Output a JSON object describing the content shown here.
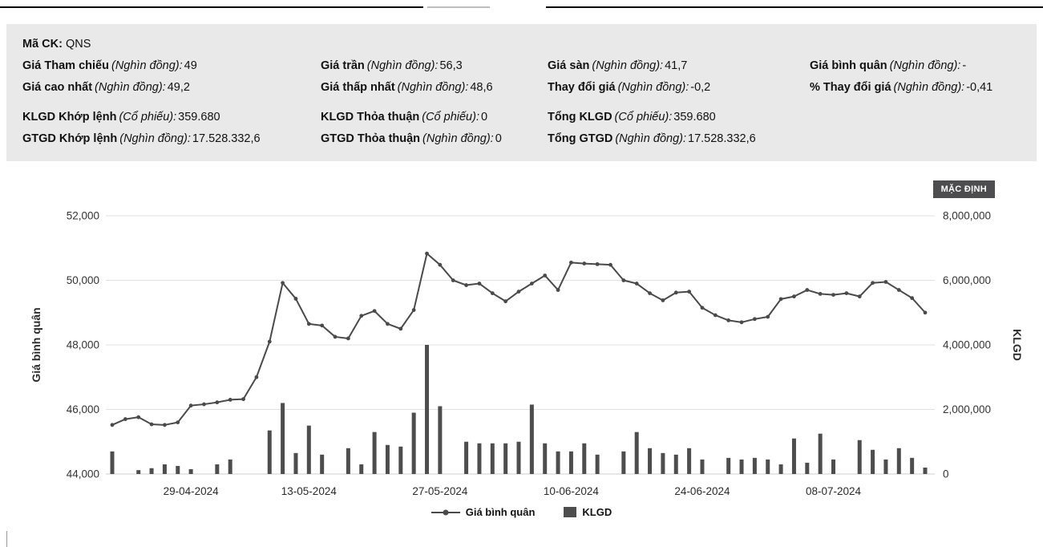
{
  "info_panel": {
    "ticker_label": "Mã CK:",
    "ticker_value": "QNS",
    "cells": [
      {
        "label": "Giá Tham chiếu",
        "unit": "(Nghìn đồng):",
        "value": "49"
      },
      {
        "label": "Giá trần",
        "unit": "(Nghìn đồng):",
        "value": "56,3"
      },
      {
        "label": "Giá sàn",
        "unit": "(Nghìn đồng):",
        "value": "41,7"
      },
      {
        "label": "Giá bình quân",
        "unit": "(Nghìn đồng):",
        "value": "-"
      },
      {
        "label": "Giá cao nhất",
        "unit": "(Nghìn đồng):",
        "value": "49,2"
      },
      {
        "label": "Giá thấp nhất",
        "unit": "(Nghìn đồng):",
        "value": "48,6"
      },
      {
        "label": "Thay đổi giá",
        "unit": "(Nghìn đồng):",
        "value": "-0,2"
      },
      {
        "label": "% Thay đổi giá",
        "unit": "(Nghìn đồng):",
        "value": "-0,41"
      },
      {
        "label": "KLGD Khớp lệnh",
        "unit": "(Cổ phiếu):",
        "value": "359.680"
      },
      {
        "label": "KLGD Thỏa thuận",
        "unit": "(Cổ phiếu):",
        "value": "0"
      },
      {
        "label": "Tổng KLGD",
        "unit": "(Cổ phiếu):",
        "value": "359.680"
      },
      {
        "label": "GTGD Khớp lệnh",
        "unit": "(Nghìn đồng):",
        "value": "17.528.332,6"
      },
      {
        "label": "GTGD Thỏa thuận",
        "unit": "(Nghìn đồng):",
        "value": "0"
      },
      {
        "label": "Tổng GTGD",
        "unit": "(Nghìn đồng):",
        "value": "17.528.332,6"
      }
    ]
  },
  "chart": {
    "default_button_label": "MẶC ĐỊNH"
  },
  "chart_data": {
    "type": "combo",
    "title": "",
    "x": [
      "19-04-2024",
      "22-04-2024",
      "23-04-2024",
      "24-04-2024",
      "25-04-2024",
      "26-04-2024",
      "29-04-2024",
      "30-04-2024",
      "02-05-2024",
      "03-05-2024",
      "06-05-2024",
      "07-05-2024",
      "08-05-2024",
      "09-05-2024",
      "10-05-2024",
      "13-05-2024",
      "14-05-2024",
      "15-05-2024",
      "16-05-2024",
      "17-05-2024",
      "20-05-2024",
      "21-05-2024",
      "22-05-2024",
      "23-05-2024",
      "24-05-2024",
      "27-05-2024",
      "28-05-2024",
      "29-05-2024",
      "30-05-2024",
      "31-05-2024",
      "03-06-2024",
      "04-06-2024",
      "05-06-2024",
      "06-06-2024",
      "07-06-2024",
      "10-06-2024",
      "11-06-2024",
      "12-06-2024",
      "13-06-2024",
      "14-06-2024",
      "17-06-2024",
      "18-06-2024",
      "19-06-2024",
      "20-06-2024",
      "21-06-2024",
      "24-06-2024",
      "25-06-2024",
      "26-06-2024",
      "27-06-2024",
      "28-06-2024",
      "01-07-2024",
      "02-07-2024",
      "03-07-2024",
      "04-07-2024",
      "05-07-2024",
      "08-07-2024",
      "09-07-2024",
      "10-07-2024",
      "11-07-2024",
      "12-07-2024",
      "15-07-2024",
      "16-07-2024",
      "17-07-2024"
    ],
    "x_tick_indices": [
      6,
      15,
      25,
      35,
      45,
      55
    ],
    "series": [
      {
        "name": "Giá bình quân",
        "type": "line",
        "axis": "left",
        "color": "#4a4a4a",
        "values": [
          45520,
          45700,
          45760,
          45540,
          45520,
          45600,
          46120,
          46160,
          46220,
          46300,
          46320,
          47000,
          48100,
          49920,
          49430,
          48650,
          48600,
          48250,
          48200,
          48900,
          49050,
          48650,
          48500,
          49080,
          50830,
          50480,
          50000,
          49850,
          49900,
          49600,
          49350,
          49650,
          49900,
          50150,
          49700,
          50550,
          50520,
          50500,
          50480,
          50000,
          49900,
          49600,
          49380,
          49620,
          49650,
          49150,
          48920,
          48760,
          48700,
          48800,
          48870,
          49420,
          49500,
          49700,
          49580,
          49550,
          49600,
          49500,
          49920,
          49950,
          49700,
          49450,
          49000
        ]
      },
      {
        "name": "KLGD",
        "type": "bar",
        "axis": "right",
        "color": "#4d4d4d",
        "values": [
          700000,
          0,
          120000,
          180000,
          300000,
          250000,
          150000,
          0,
          300000,
          450000,
          0,
          0,
          1350000,
          2200000,
          650000,
          1500000,
          600000,
          0,
          800000,
          300000,
          1300000,
          900000,
          850000,
          1900000,
          4000000,
          2100000,
          0,
          1000000,
          950000,
          950000,
          950000,
          1000000,
          2150000,
          950000,
          700000,
          700000,
          950000,
          600000,
          0,
          700000,
          1300000,
          800000,
          650000,
          600000,
          800000,
          450000,
          0,
          500000,
          450000,
          500000,
          450000,
          300000,
          1100000,
          350000,
          1250000,
          450000,
          0,
          1050000,
          750000,
          450000,
          800000,
          500000,
          200000
        ]
      }
    ],
    "y_left": {
      "label": "Giá bình quân",
      "min": 44000,
      "max": 52000,
      "step": 2000
    },
    "y_right": {
      "label": "KLGD",
      "min": 0,
      "max": 8000000,
      "step": 2000000
    },
    "grid": true,
    "legend_position": "bottom"
  }
}
